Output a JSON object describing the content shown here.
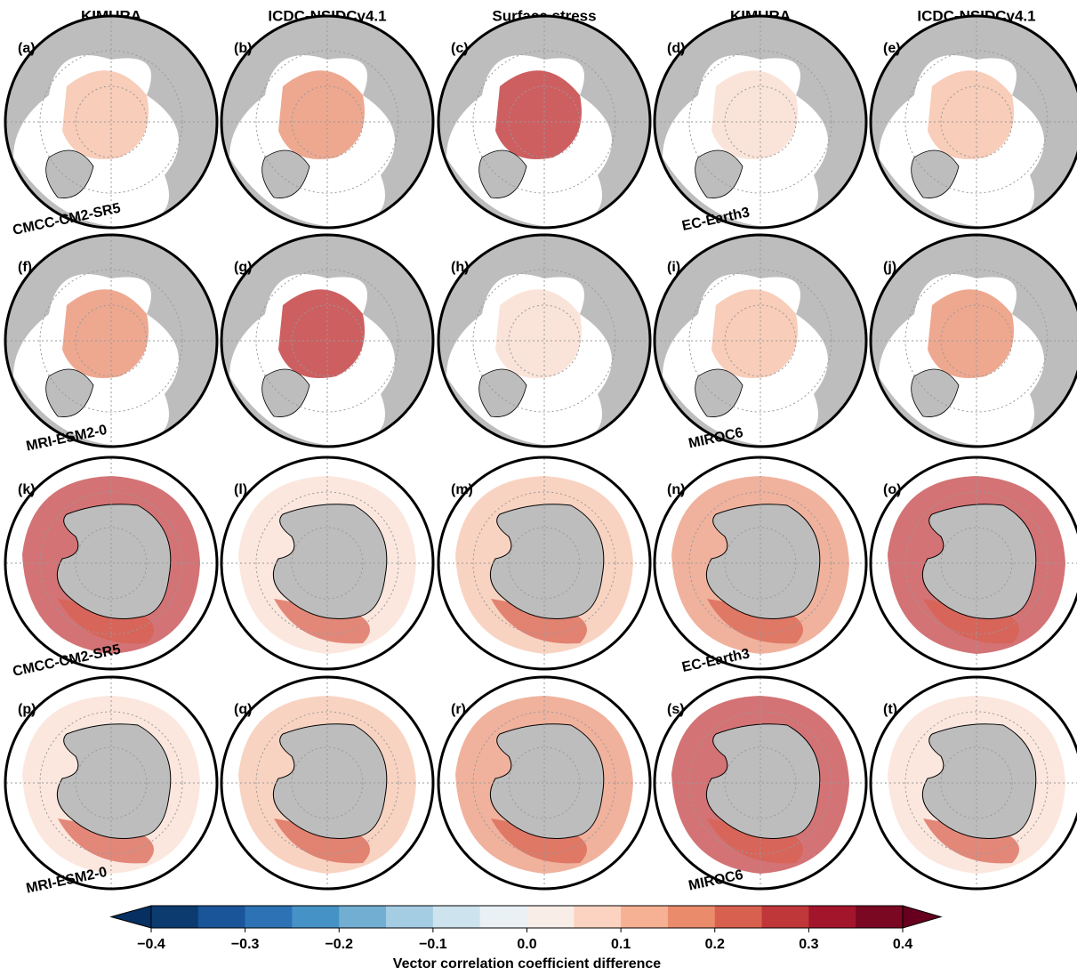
{
  "columns": [
    "KIMURA",
    "ICDC-NSIDCv4.1",
    "Surface stress",
    "KIMURA",
    "ICDC-NSIDCv4.1"
  ],
  "panel_labels": [
    "(a)",
    "(b)",
    "(c)",
    "(d)",
    "(e)",
    "(f)",
    "(g)",
    "(h)",
    "(i)",
    "(j)",
    "(k)",
    "(l)",
    "(m)",
    "(n)",
    "(o)",
    "(p)",
    "(q)",
    "(r)",
    "(s)",
    "(t)"
  ],
  "model_labels": [
    [
      "CMCC-CM2-SR5",
      "EC-Earth3"
    ],
    [
      "MRI-ESM2-0",
      "MIROC6"
    ],
    [
      "CMCC-CM2-SR5",
      "EC-Earth3"
    ],
    [
      "MRI-ESM2-0",
      "MIROC6"
    ]
  ],
  "colorbar": {
    "label": "Vector correlation coefficient difference",
    "levels": [
      -0.4,
      -0.35,
      -0.3,
      -0.25,
      -0.2,
      -0.15,
      -0.1,
      -0.05,
      0,
      0.05,
      0.1,
      0.15,
      0.2,
      0.25,
      0.3,
      0.35,
      0.4
    ],
    "colors": [
      "#0c3b70",
      "#1a5599",
      "#2d72b4",
      "#4592c6",
      "#72aed2",
      "#a4cde3",
      "#cde3ee",
      "#e9f1f5",
      "#f9ede7",
      "#fbd3c0",
      "#f6b093",
      "#ea8b6b",
      "#d8604e",
      "#c0373a",
      "#a3152a",
      "#7a0822"
    ],
    "under_color": "#053061",
    "over_color": "#67001f",
    "ticks": [
      {
        "value": -0.4,
        "label": "−0.4"
      },
      {
        "value": -0.3,
        "label": "−0.3"
      },
      {
        "value": -0.2,
        "label": "−0.2"
      },
      {
        "value": -0.1,
        "label": "−0.1"
      },
      {
        "value": 0,
        "label": "0.0"
      },
      0.1,
      0.2,
      0.3,
      0.4
    ]
  }
}
